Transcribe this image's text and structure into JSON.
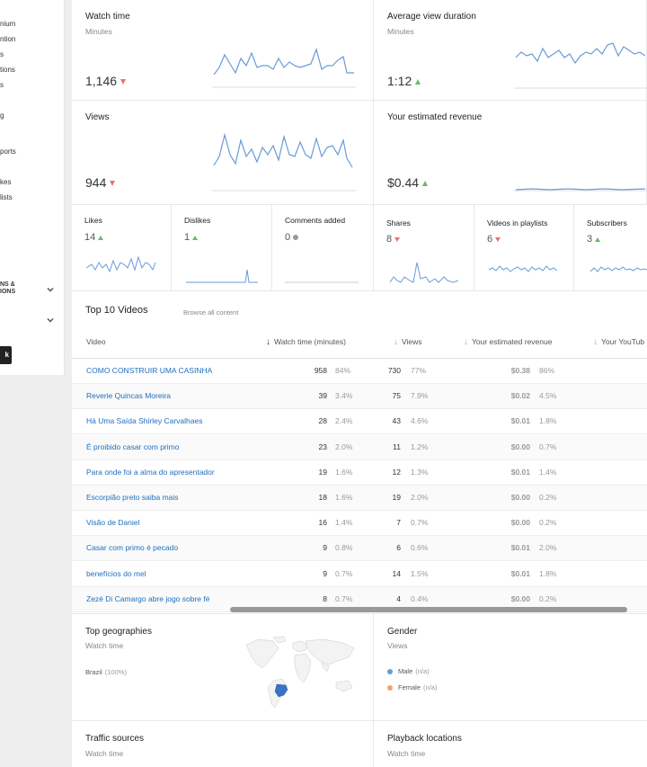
{
  "sidebar": {
    "items": [
      "nium",
      "ntion",
      "s",
      "tions",
      "s",
      "g",
      "ports",
      "kes",
      "lists"
    ],
    "sections": [
      [
        "NS &",
        "IONS"
      ]
    ],
    "button_label": "k"
  },
  "cards": {
    "watch_time": {
      "title": "Watch time",
      "sub": "Minutes",
      "value": "1,146"
    },
    "avg_view": {
      "title": "Average view duration",
      "sub": "Minutes",
      "value": "1:12"
    },
    "views": {
      "title": "Views",
      "value": "944"
    },
    "revenue": {
      "title": "Your estimated revenue",
      "value": "$0.44"
    }
  },
  "small_cards": {
    "likes": {
      "title": "Likes",
      "value": "14"
    },
    "dislikes": {
      "title": "Dislikes",
      "value": "1"
    },
    "comments": {
      "title": "Comments added",
      "value": "0"
    },
    "shares": {
      "title": "Shares",
      "value": "8"
    },
    "playlists": {
      "title": "Videos in playlists",
      "value": "6"
    },
    "subscribers": {
      "title": "Subscribers",
      "value": "3"
    }
  },
  "colors": {
    "accent": "#1e6fbe",
    "up": "#66bb6a",
    "down": "#e57373",
    "spark": "#6a9bd8"
  },
  "top_videos": {
    "title": "Top 10 Videos",
    "link": "Browse all content",
    "headers": {
      "video": "Video",
      "watch": "Watch time (minutes)",
      "views": "Views",
      "revenue": "Your estimated revenue",
      "yt": "Your YouTub"
    },
    "rows": [
      {
        "title": "COMO CONSTRUIR UMA CASINHA",
        "watch": "958",
        "watch_pct": "84%",
        "views": "730",
        "views_pct": "77%",
        "rev": "$0.38",
        "rev_pct": "86%"
      },
      {
        "title": "Reverie Quincas Moreira",
        "watch": "39",
        "watch_pct": "3.4%",
        "views": "75",
        "views_pct": "7.9%",
        "rev": "$0.02",
        "rev_pct": "4.5%"
      },
      {
        "title": "Há Uma Saída Shirley Carvalhaes",
        "watch": "28",
        "watch_pct": "2.4%",
        "views": "43",
        "views_pct": "4.6%",
        "rev": "$0.01",
        "rev_pct": "1.8%"
      },
      {
        "title": "É proibido casar com primo",
        "watch": "23",
        "watch_pct": "2.0%",
        "views": "11",
        "views_pct": "1.2%",
        "rev": "$0.00",
        "rev_pct": "0.7%"
      },
      {
        "title": "Para onde foi a alma do apresentador",
        "watch": "19",
        "watch_pct": "1.6%",
        "views": "12",
        "views_pct": "1.3%",
        "rev": "$0.01",
        "rev_pct": "1.4%"
      },
      {
        "title": "Escorpião preto saiba mais",
        "watch": "18",
        "watch_pct": "1.6%",
        "views": "19",
        "views_pct": "2.0%",
        "rev": "$0.00",
        "rev_pct": "0.2%"
      },
      {
        "title": "Visão de Daniel",
        "watch": "16",
        "watch_pct": "1.4%",
        "views": "7",
        "views_pct": "0.7%",
        "rev": "$0.00",
        "rev_pct": "0.2%"
      },
      {
        "title": "Casar com primo é pecado",
        "watch": "9",
        "watch_pct": "0.8%",
        "views": "6",
        "views_pct": "0.6%",
        "rev": "$0.01",
        "rev_pct": "2.0%"
      },
      {
        "title": "benefícios do mel",
        "watch": "9",
        "watch_pct": "0.7%",
        "views": "14",
        "views_pct": "1.5%",
        "rev": "$0.01",
        "rev_pct": "1.8%"
      },
      {
        "title": "Zezé Di Camargo abre jogo sobre fé",
        "watch": "8",
        "watch_pct": "0.7%",
        "views": "4",
        "views_pct": "0.4%",
        "rev": "$0.00",
        "rev_pct": "0.2%"
      }
    ]
  },
  "geo": {
    "title": "Top geographies",
    "sub": "Watch time",
    "country": "Brazil",
    "country_pct": "(100%)"
  },
  "gender": {
    "title": "Gender",
    "sub": "Views",
    "male": "Male",
    "male_val": "(n/a)",
    "female": "Female",
    "female_val": "(n/a)"
  },
  "traffic": {
    "title": "Traffic sources",
    "sub": "Watch time"
  },
  "playback": {
    "title": "Playback locations",
    "sub": "Watch time"
  }
}
